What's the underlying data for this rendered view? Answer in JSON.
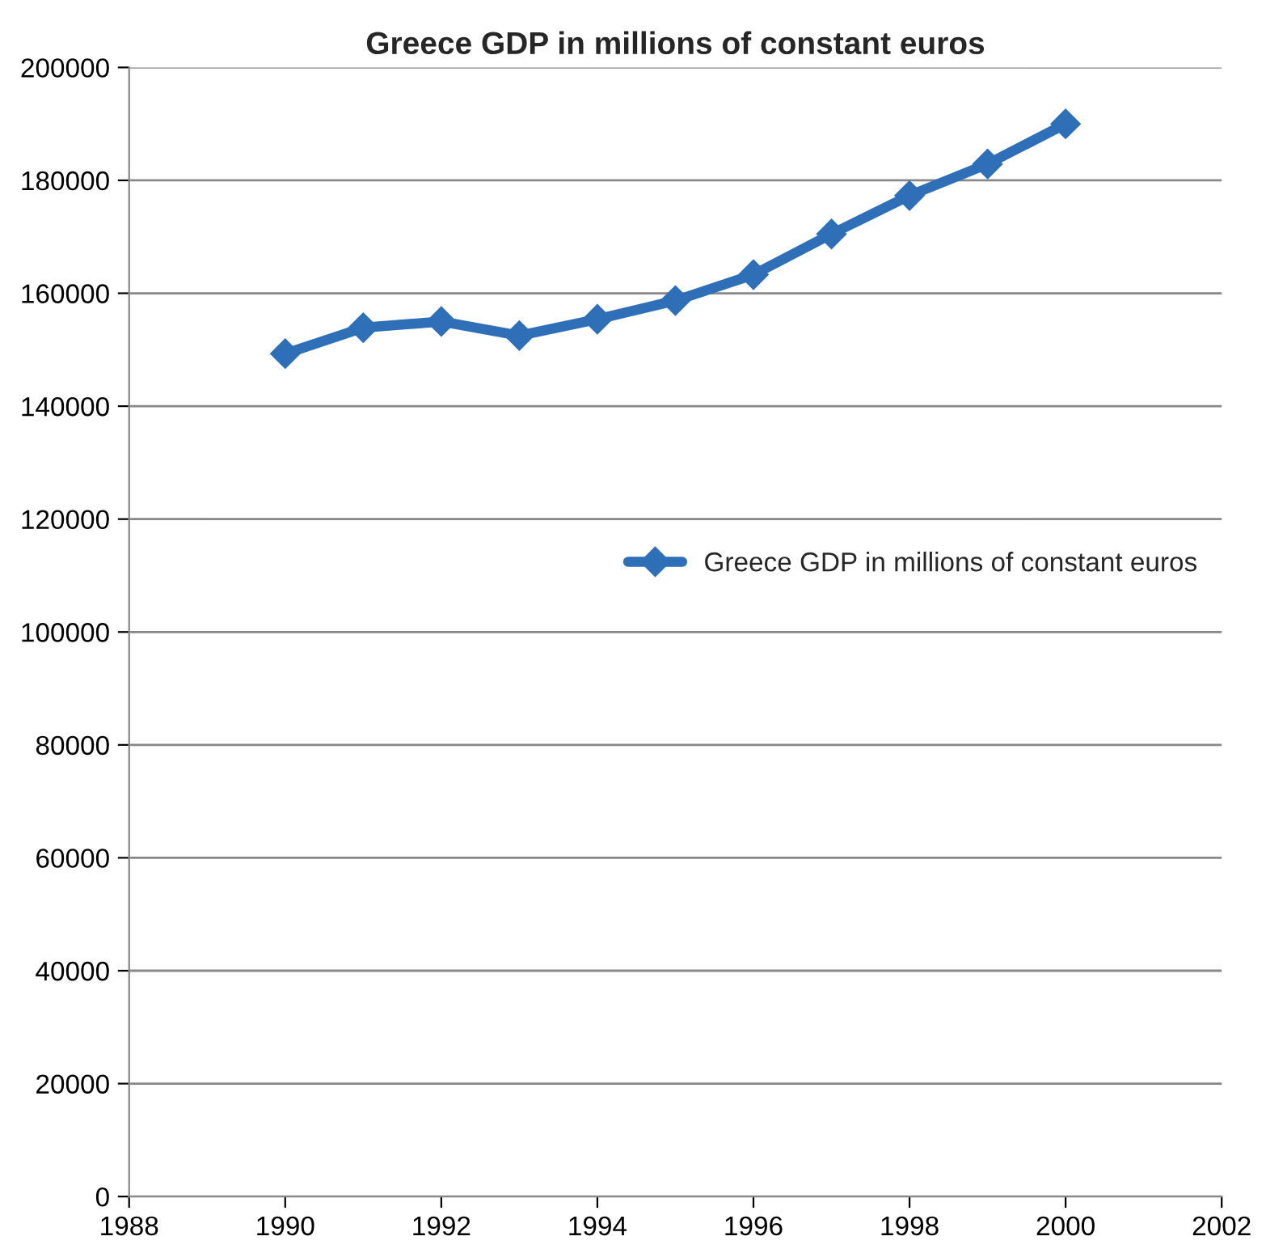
{
  "chart_data": {
    "type": "line",
    "title": "Greece GDP in millions of constant euros",
    "x": [
      1990,
      1991,
      1992,
      1993,
      1994,
      1995,
      1996,
      1997,
      1998,
      1999,
      2000
    ],
    "series": [
      {
        "name": "Greece GDP in millions of constant euros",
        "color": "#2e6fb7",
        "values": [
          149300,
          153900,
          155000,
          152500,
          155400,
          158700,
          163300,
          170500,
          177300,
          182900,
          190000
        ]
      }
    ],
    "xlim": [
      1988,
      2002
    ],
    "xticks": [
      1988,
      1990,
      1992,
      1994,
      1996,
      1998,
      2000,
      2002
    ],
    "ylim": [
      0,
      200000
    ],
    "yticks": [
      0,
      20000,
      40000,
      60000,
      80000,
      100000,
      120000,
      140000,
      160000,
      180000,
      200000
    ],
    "grid": "y",
    "legend": "right",
    "marker": "diamond",
    "line_style": "solid"
  }
}
